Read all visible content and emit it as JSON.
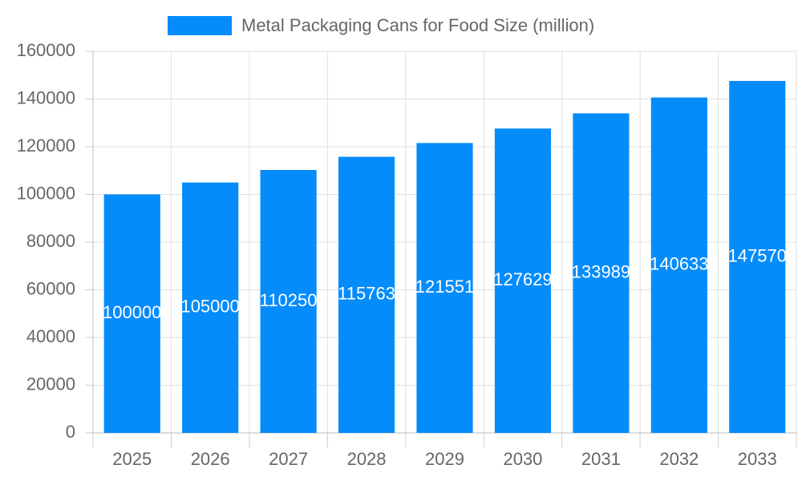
{
  "chart_data": {
    "type": "bar",
    "categories": [
      "2025",
      "2026",
      "2027",
      "2028",
      "2029",
      "2030",
      "2031",
      "2032",
      "2033"
    ],
    "series": [
      {
        "name": "Metal Packaging Cans for Food Size (million)",
        "color": "#058cfb",
        "values": [
          100000,
          105000,
          110250,
          115763,
          121551,
          127629,
          133989,
          140633,
          147570
        ]
      }
    ],
    "ylim": [
      0,
      160000
    ],
    "yticks": [
      0,
      20000,
      40000,
      60000,
      80000,
      100000,
      120000,
      140000,
      160000
    ],
    "grid": true,
    "legend": "top",
    "data_labels": true
  }
}
